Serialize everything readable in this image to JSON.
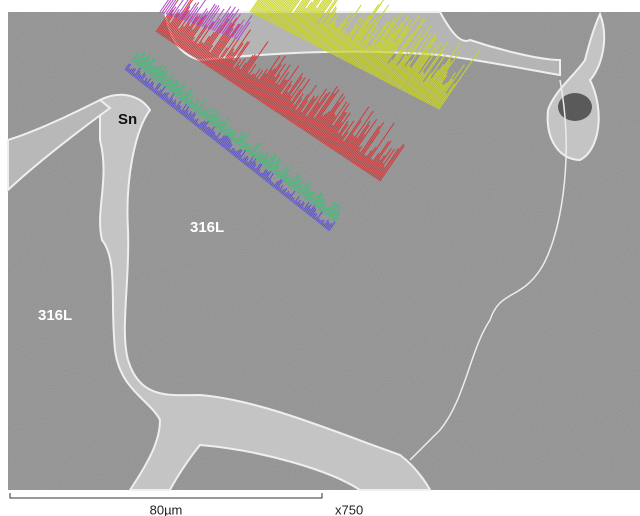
{
  "micrograph": {
    "labels": [
      "Sn",
      "316L",
      "316L"
    ]
  },
  "scale_bar": {
    "length_label": "80µm",
    "magnification": "x750"
  }
}
